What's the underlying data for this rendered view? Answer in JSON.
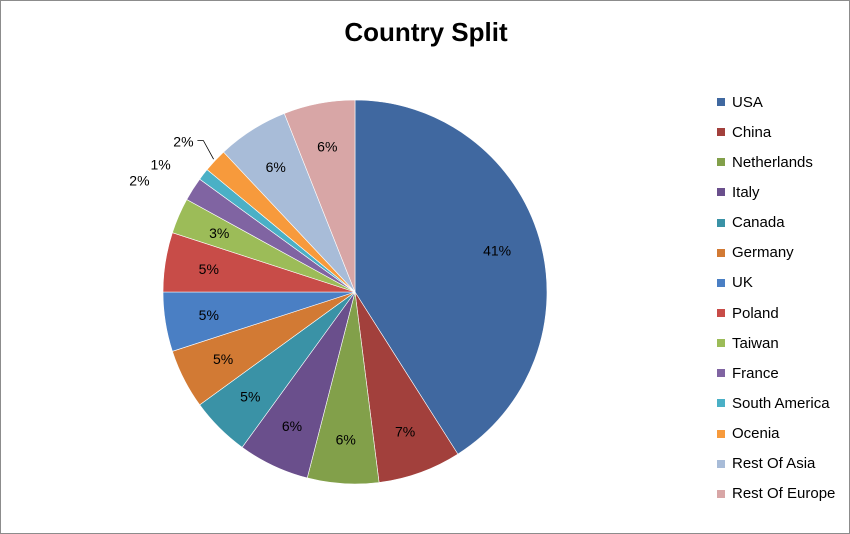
{
  "chart_data": {
    "type": "pie",
    "title": "Country Split",
    "legend_position": "right",
    "slices": [
      {
        "name": "USA",
        "value": 41,
        "label": "41%",
        "color": "#4068a0"
      },
      {
        "name": "China",
        "value": 7,
        "label": "7%",
        "color": "#a2403c"
      },
      {
        "name": "Netherlands",
        "value": 6,
        "label": "6%",
        "color": "#82a04a"
      },
      {
        "name": "Italy",
        "value": 6,
        "label": "6%",
        "color": "#6a4f8c"
      },
      {
        "name": "Canada",
        "value": 5,
        "label": "5%",
        "color": "#3a92a6"
      },
      {
        "name": "Germany",
        "value": 5,
        "label": "5%",
        "color": "#d27a34"
      },
      {
        "name": "UK",
        "value": 5,
        "label": "5%",
        "color": "#4a7fc4"
      },
      {
        "name": "Poland",
        "value": 5,
        "label": "5%",
        "color": "#c84c48"
      },
      {
        "name": "Taiwan",
        "value": 3,
        "label": "3%",
        "color": "#9cbc58"
      },
      {
        "name": "France",
        "value": 2,
        "label": "2%",
        "color": "#8064a2"
      },
      {
        "name": "South America",
        "value": 1,
        "label": "1%",
        "color": "#4ab0c6"
      },
      {
        "name": "Ocenia",
        "value": 2,
        "label": "2%",
        "color": "#f79a3c"
      },
      {
        "name": "Rest Of Asia",
        "value": 6,
        "label": "6%",
        "color": "#a8bcd8"
      },
      {
        "name": "Rest Of Europe",
        "value": 6,
        "label": "6%",
        "color": "#d8a6a6"
      }
    ]
  }
}
